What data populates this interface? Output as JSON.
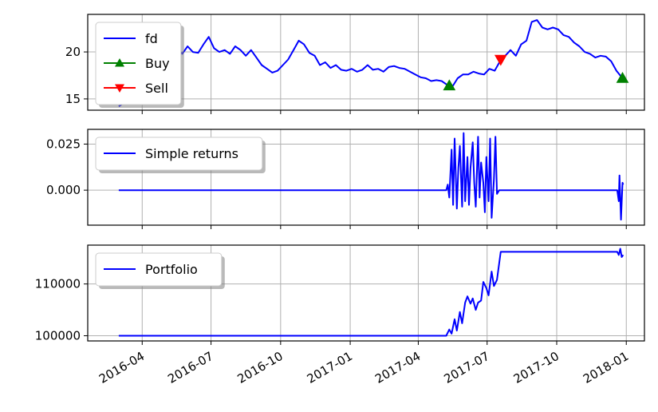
{
  "chart_data": [
    {
      "type": "line",
      "panel": "price",
      "y_ticks": [
        15,
        20
      ],
      "ylim": [
        13.8,
        24.0
      ],
      "grid": true,
      "legend_position": "top-left",
      "series": [
        {
          "name": "fd",
          "color": "#0000ff",
          "x": [
            "2016-03-01",
            "2016-03-08",
            "2016-03-15",
            "2016-03-22",
            "2016-03-29",
            "2016-04-05",
            "2016-04-12",
            "2016-04-19",
            "2016-04-26",
            "2016-05-03",
            "2016-05-10",
            "2016-05-17",
            "2016-05-24",
            "2016-05-31",
            "2016-06-07",
            "2016-06-14",
            "2016-06-21",
            "2016-06-28",
            "2016-07-05",
            "2016-07-12",
            "2016-07-19",
            "2016-07-26",
            "2016-08-02",
            "2016-08-09",
            "2016-08-16",
            "2016-08-23",
            "2016-08-30",
            "2016-09-06",
            "2016-09-13",
            "2016-09-20",
            "2016-09-27",
            "2016-10-04",
            "2016-10-11",
            "2016-10-18",
            "2016-10-25",
            "2016-11-01",
            "2016-11-08",
            "2016-11-15",
            "2016-11-22",
            "2016-11-29",
            "2016-12-06",
            "2016-12-13",
            "2016-12-20",
            "2016-12-27",
            "2017-01-03",
            "2017-01-10",
            "2017-01-17",
            "2017-01-24",
            "2017-01-31",
            "2017-02-07",
            "2017-02-14",
            "2017-02-21",
            "2017-02-28",
            "2017-03-07",
            "2017-03-14",
            "2017-03-21",
            "2017-03-28",
            "2017-04-04",
            "2017-04-11",
            "2017-04-18",
            "2017-04-25",
            "2017-05-02",
            "2017-05-09",
            "2017-05-16",
            "2017-05-23",
            "2017-05-30",
            "2017-06-06",
            "2017-06-13",
            "2017-06-20",
            "2017-06-27",
            "2017-07-04",
            "2017-07-11",
            "2017-07-18",
            "2017-07-25",
            "2017-08-01",
            "2017-08-08",
            "2017-08-15",
            "2017-08-22",
            "2017-08-29",
            "2017-09-05",
            "2017-09-12",
            "2017-09-19",
            "2017-09-26",
            "2017-10-03",
            "2017-10-10",
            "2017-10-17",
            "2017-10-24",
            "2017-10-31",
            "2017-11-07",
            "2017-11-14",
            "2017-11-21",
            "2017-11-28",
            "2017-12-05",
            "2017-12-12",
            "2017-12-19",
            "2017-12-26"
          ],
          "values": [
            14.2,
            14.6,
            15.4,
            16.4,
            17.2,
            17.6,
            17.9,
            17.4,
            17.6,
            18.6,
            19.8,
            20.4,
            19.8,
            20.6,
            20.0,
            19.9,
            20.8,
            21.6,
            20.4,
            20.0,
            20.2,
            19.8,
            20.6,
            20.2,
            19.6,
            20.2,
            19.4,
            18.6,
            18.2,
            17.8,
            18.0,
            18.6,
            19.2,
            20.2,
            21.2,
            20.8,
            19.9,
            19.6,
            18.6,
            18.9,
            18.3,
            18.6,
            18.1,
            18.0,
            18.2,
            17.9,
            18.1,
            18.6,
            18.1,
            18.2,
            17.9,
            18.4,
            18.5,
            18.3,
            18.2,
            17.9,
            17.6,
            17.3,
            17.2,
            16.9,
            17.0,
            16.9,
            16.5,
            16.3,
            17.2,
            17.6,
            17.6,
            17.9,
            17.7,
            17.6,
            18.2,
            18.0,
            19.0,
            19.6,
            20.2,
            19.6,
            20.8,
            21.2,
            23.2,
            23.4,
            22.6,
            22.4,
            22.6,
            22.4,
            21.8,
            21.6,
            21.0,
            20.6,
            20.0,
            19.8,
            19.4,
            19.6,
            19.5,
            19.0,
            18.0,
            17.3
          ]
        },
        {
          "name": "Buy",
          "color": "#008000",
          "marker": "triangle-up",
          "x": [
            "2017-05-12",
            "2017-12-27"
          ],
          "values": [
            16.4,
            17.2
          ]
        },
        {
          "name": "Sell",
          "color": "#ff0000",
          "marker": "triangle-down",
          "x": [
            "2017-07-19"
          ],
          "values": [
            19.2
          ]
        }
      ]
    },
    {
      "type": "line",
      "panel": "returns",
      "y_ticks": [
        0.025,
        0.0
      ],
      "y_tick_labels": [
        "0.025",
        "0.000"
      ],
      "ylim": [
        -0.019,
        0.033
      ],
      "grid": true,
      "legend_position": "top-left",
      "series": [
        {
          "name": "Simple returns",
          "color": "#0000ff",
          "x": [
            "2016-03-01",
            "2017-05-08",
            "2017-05-10",
            "2017-05-12",
            "2017-05-15",
            "2017-05-17",
            "2017-05-19",
            "2017-05-22",
            "2017-05-24",
            "2017-05-26",
            "2017-05-29",
            "2017-05-31",
            "2017-06-02",
            "2017-06-05",
            "2017-06-07",
            "2017-06-09",
            "2017-06-12",
            "2017-06-14",
            "2017-06-16",
            "2017-06-19",
            "2017-06-21",
            "2017-06-23",
            "2017-06-26",
            "2017-06-28",
            "2017-06-30",
            "2017-07-03",
            "2017-07-05",
            "2017-07-07",
            "2017-07-10",
            "2017-07-12",
            "2017-07-14",
            "2017-07-17",
            "2017-07-19",
            "2017-12-20",
            "2017-12-22",
            "2017-12-23",
            "2017-12-25",
            "2017-12-27",
            "2017-12-28"
          ],
          "values": [
            0.0,
            0.0,
            0.003,
            -0.004,
            0.022,
            -0.008,
            0.028,
            -0.01,
            0.012,
            0.024,
            -0.009,
            0.031,
            -0.006,
            0.018,
            -0.008,
            0.012,
            0.026,
            0.004,
            -0.009,
            0.029,
            -0.004,
            0.015,
            0.004,
            -0.012,
            0.018,
            -0.006,
            0.028,
            -0.015,
            0.006,
            0.029,
            -0.002,
            0.0,
            0.0,
            0.0,
            -0.006,
            0.008,
            -0.016,
            0.004,
            0.003
          ]
        }
      ]
    },
    {
      "type": "line",
      "panel": "portfolio",
      "y_ticks": [
        100000,
        110000
      ],
      "ylim": [
        99000,
        117500
      ],
      "grid": true,
      "legend_position": "top-left",
      "series": [
        {
          "name": "Portfolio",
          "color": "#0000ff",
          "x": [
            "2016-03-01",
            "2017-05-08",
            "2017-05-12",
            "2017-05-15",
            "2017-05-19",
            "2017-05-22",
            "2017-05-26",
            "2017-05-29",
            "2017-06-02",
            "2017-06-05",
            "2017-06-09",
            "2017-06-12",
            "2017-06-16",
            "2017-06-19",
            "2017-06-23",
            "2017-06-26",
            "2017-06-30",
            "2017-07-03",
            "2017-07-07",
            "2017-07-10",
            "2017-07-14",
            "2017-07-19",
            "2017-12-20",
            "2017-12-22",
            "2017-12-24",
            "2017-12-26",
            "2017-12-28"
          ],
          "values": [
            100000,
            100000,
            101200,
            100400,
            103200,
            101000,
            104600,
            102400,
            106400,
            107600,
            106200,
            107200,
            105000,
            106400,
            106800,
            110400,
            109200,
            107800,
            112400,
            109600,
            110800,
            116200,
            116200,
            115600,
            116800,
            115200,
            115600
          ]
        }
      ]
    }
  ],
  "x_axis": {
    "tick_labels": [
      "2016-04",
      "2016-07",
      "2016-10",
      "2017-01",
      "2017-04",
      "2017-07",
      "2017-10",
      "2018-01"
    ],
    "range": [
      "2016-01-20",
      "2018-01-25"
    ]
  }
}
